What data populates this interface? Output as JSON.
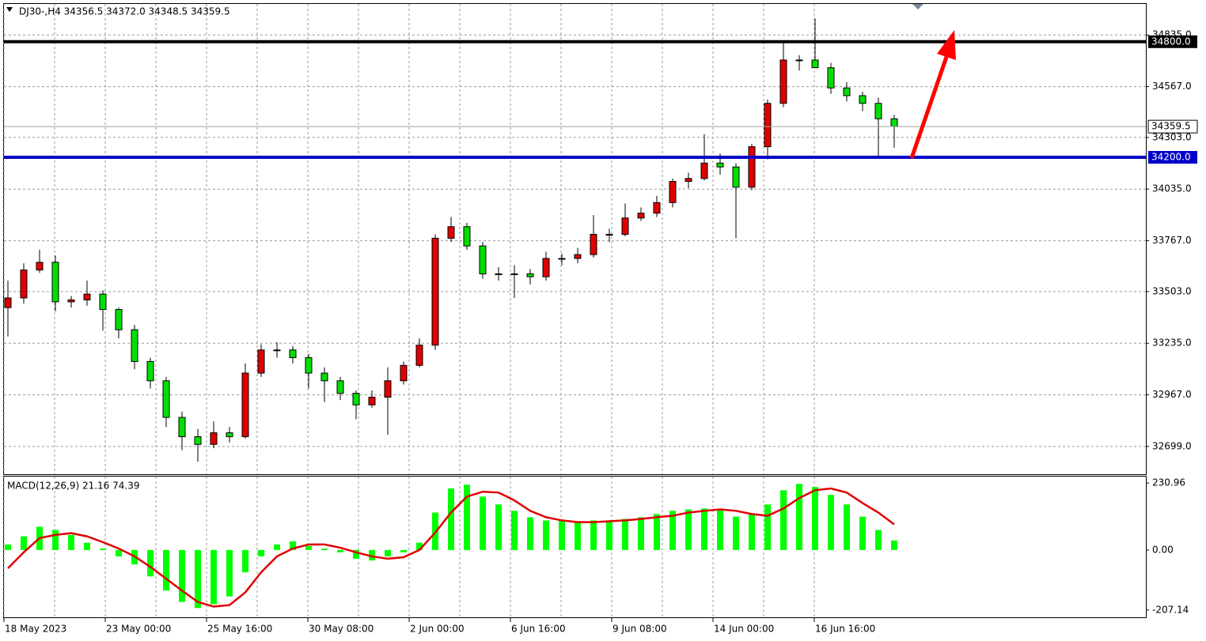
{
  "chart_data": [
    {
      "type": "candlestick",
      "title": "DJ30-,H4  34356.5 34372.0 34348.5 34359.5",
      "xlim": [
        -0.25,
        71.9
      ],
      "xticks": [
        {
          "value": -0.25,
          "label": "18 May 2023"
        },
        {
          "value": 6.15,
          "label": "23 May 00:00"
        },
        {
          "value": 12.55,
          "label": "25 May 16:00"
        },
        {
          "value": 18.95,
          "label": "30 May 08:00"
        },
        {
          "value": 25.35,
          "label": "2 Jun 00:00"
        },
        {
          "value": 31.75,
          "label": "6 Jun 16:00"
        },
        {
          "value": 38.15,
          "label": "9 Jun 08:00"
        },
        {
          "value": 44.55,
          "label": "14 Jun 00:00"
        },
        {
          "value": 50.95,
          "label": "16 Jun 16:00"
        }
      ],
      "ylim": [
        32555,
        34996
      ],
      "yticks": [
        {
          "value": 32699,
          "label": "32699.0"
        },
        {
          "value": 32967,
          "label": "32967.0"
        },
        {
          "value": 33235,
          "label": "33235.0"
        },
        {
          "value": 33503,
          "label": "33503.0"
        },
        {
          "value": 33767,
          "label": "33767.0"
        },
        {
          "value": 34035,
          "label": "34035.0"
        },
        {
          "value": 34303,
          "label": "34303.0"
        },
        {
          "value": 34567,
          "label": "34567.0"
        },
        {
          "value": 34835,
          "label": "34835.0"
        }
      ],
      "grid": true,
      "up_color": "#e00000",
      "down_color": "#00e000",
      "levels": [
        {
          "value": 34800,
          "label": "34800.0",
          "color": "#000000"
        },
        {
          "value": 34200,
          "label": "34200.0",
          "color": "#0000c8"
        }
      ],
      "last_price": {
        "value": 34359.5,
        "label": "34359.5"
      },
      "candles": [
        [
          33420,
          33560,
          33270,
          33470
        ],
        [
          33470,
          33650,
          33440,
          33615
        ],
        [
          33615,
          33720,
          33600,
          33655
        ],
        [
          33655,
          33690,
          33400,
          33450
        ],
        [
          33450,
          33480,
          33420,
          33460
        ],
        [
          33460,
          33560,
          33430,
          33490
        ],
        [
          33490,
          33510,
          33300,
          33410
        ],
        [
          33410,
          33420,
          33260,
          33305
        ],
        [
          33305,
          33330,
          33100,
          33140
        ],
        [
          33140,
          33160,
          33000,
          33040
        ],
        [
          33040,
          33060,
          32800,
          32850
        ],
        [
          32850,
          32880,
          32680,
          32750
        ],
        [
          32750,
          32790,
          32620,
          32710
        ],
        [
          32710,
          32830,
          32690,
          32770
        ],
        [
          32770,
          32800,
          32720,
          32750
        ],
        [
          32750,
          33130,
          32740,
          33080
        ],
        [
          33080,
          33230,
          33060,
          33200
        ],
        [
          33200,
          33240,
          33160,
          33200
        ],
        [
          33200,
          33220,
          33130,
          33160
        ],
        [
          33160,
          33180,
          33000,
          33080
        ],
        [
          33080,
          33110,
          32930,
          33040
        ],
        [
          33040,
          33060,
          32940,
          32975
        ],
        [
          32975,
          32990,
          32840,
          32915
        ],
        [
          32915,
          32990,
          32900,
          32955
        ],
        [
          32955,
          33110,
          32760,
          33040
        ],
        [
          33040,
          33140,
          33020,
          33120
        ],
        [
          33120,
          33260,
          33110,
          33225
        ],
        [
          33225,
          33800,
          33200,
          33780
        ],
        [
          33780,
          33890,
          33760,
          33840
        ],
        [
          33840,
          33860,
          33720,
          33740
        ],
        [
          33740,
          33760,
          33570,
          33595
        ],
        [
          33595,
          33630,
          33560,
          33595
        ],
        [
          33595,
          33640,
          33470,
          33595
        ],
        [
          33595,
          33620,
          33540,
          33580
        ],
        [
          33580,
          33710,
          33560,
          33675
        ],
        [
          33675,
          33700,
          33640,
          33675
        ],
        [
          33675,
          33730,
          33650,
          33695
        ],
        [
          33695,
          33900,
          33680,
          33800
        ],
        [
          33800,
          33830,
          33760,
          33800
        ],
        [
          33800,
          33960,
          33790,
          33885
        ],
        [
          33885,
          33940,
          33870,
          33910
        ],
        [
          33910,
          34000,
          33890,
          33965
        ],
        [
          33965,
          34090,
          33940,
          34075
        ],
        [
          34075,
          34120,
          34040,
          34090
        ],
        [
          34090,
          34320,
          34080,
          34170
        ],
        [
          34170,
          34220,
          34110,
          34150
        ],
        [
          34150,
          34170,
          33780,
          34045
        ],
        [
          34045,
          34270,
          34030,
          34255
        ],
        [
          34255,
          34500,
          34190,
          34480
        ],
        [
          34480,
          34800,
          34460,
          34705
        ],
        [
          34705,
          34730,
          34650,
          34705
        ],
        [
          34705,
          34920,
          34680,
          34665
        ],
        [
          34665,
          34690,
          34530,
          34560
        ],
        [
          34560,
          34590,
          34490,
          34520
        ],
        [
          34520,
          34540,
          34440,
          34480
        ],
        [
          34480,
          34510,
          34200,
          34400
        ],
        [
          34400,
          34420,
          34250,
          34360
        ]
      ]
    },
    {
      "type": "macd",
      "title": "MACD(12,26,9) 21.16 74.39",
      "ylim": [
        -234.7,
        253
      ],
      "yticks": [
        {
          "value": -207.14,
          "label": "-207.14"
        },
        {
          "value": 0,
          "label": "0.00"
        },
        {
          "value": 230.96,
          "label": "230.96"
        }
      ],
      "histogram_color": "#00ff00",
      "signal_color": "#e00000",
      "histogram": [
        19,
        47,
        80,
        69,
        52,
        25,
        5,
        -22,
        -50,
        -91,
        -140,
        -179,
        -200,
        -187,
        -160,
        -77,
        -22,
        19,
        30,
        14,
        5,
        -8,
        -30,
        -36,
        -22,
        -8,
        25,
        129,
        212,
        225,
        184,
        157,
        135,
        113,
        102,
        102,
        96,
        102,
        102,
        107,
        113,
        124,
        135,
        140,
        143,
        140,
        115,
        124,
        157,
        206,
        228,
        217,
        190,
        157,
        115,
        69,
        33
      ],
      "signal": [
        -63,
        -8,
        41,
        52,
        58,
        47,
        27,
        5,
        -22,
        -58,
        -99,
        -140,
        -179,
        -195,
        -190,
        -146,
        -77,
        -22,
        5,
        19,
        19,
        8,
        -8,
        -22,
        -30,
        -25,
        0,
        60,
        129,
        184,
        201,
        198,
        171,
        135,
        113,
        102,
        96,
        96,
        99,
        102,
        107,
        113,
        118,
        129,
        135,
        140,
        135,
        124,
        118,
        143,
        179,
        206,
        212,
        198,
        162,
        129,
        88
      ]
    }
  ]
}
